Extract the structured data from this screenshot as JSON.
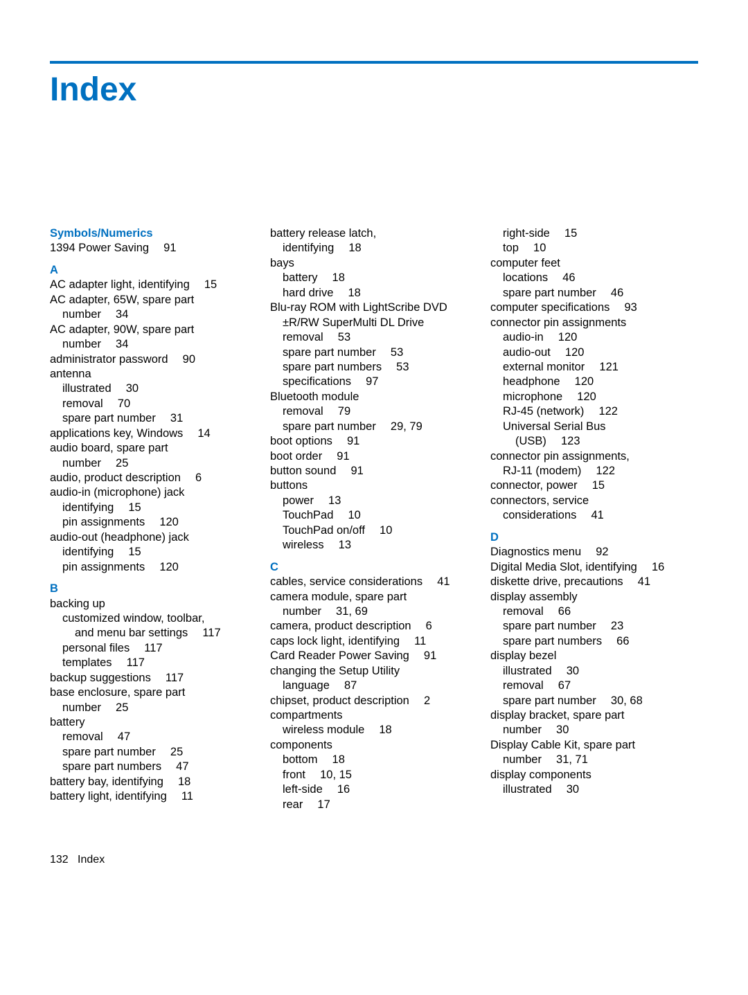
{
  "title": "Index",
  "footer_page": "132",
  "footer_label": "Index",
  "columns": [
    {
      "items": [
        {
          "kind": "head",
          "text": "Symbols/Numerics",
          "first": true
        },
        {
          "kind": "line",
          "indent": 0,
          "text": "1394 Power Saving  91"
        },
        {
          "kind": "head",
          "text": "A"
        },
        {
          "kind": "line",
          "indent": 0,
          "text": "AC adapter light, identifying  15"
        },
        {
          "kind": "line",
          "indent": 0,
          "text": "AC adapter, 65W, spare part"
        },
        {
          "kind": "line",
          "indent": 1,
          "text": "number  34"
        },
        {
          "kind": "line",
          "indent": 0,
          "text": "AC adapter, 90W, spare part"
        },
        {
          "kind": "line",
          "indent": 1,
          "text": "number  34"
        },
        {
          "kind": "line",
          "indent": 0,
          "text": "administrator password  90"
        },
        {
          "kind": "line",
          "indent": 0,
          "text": "antenna"
        },
        {
          "kind": "line",
          "indent": 1,
          "text": "illustrated  30"
        },
        {
          "kind": "line",
          "indent": 1,
          "text": "removal  70"
        },
        {
          "kind": "line",
          "indent": 1,
          "text": "spare part number  31"
        },
        {
          "kind": "line",
          "indent": 0,
          "text": "applications key, Windows  14"
        },
        {
          "kind": "line",
          "indent": 0,
          "text": "audio board, spare part"
        },
        {
          "kind": "line",
          "indent": 1,
          "text": "number  25"
        },
        {
          "kind": "line",
          "indent": 0,
          "text": "audio, product description  6"
        },
        {
          "kind": "line",
          "indent": 0,
          "text": "audio-in (microphone) jack"
        },
        {
          "kind": "line",
          "indent": 1,
          "text": "identifying  15"
        },
        {
          "kind": "line",
          "indent": 1,
          "text": "pin assignments  120"
        },
        {
          "kind": "line",
          "indent": 0,
          "text": "audio-out (headphone) jack"
        },
        {
          "kind": "line",
          "indent": 1,
          "text": "identifying  15"
        },
        {
          "kind": "line",
          "indent": 1,
          "text": "pin assignments  120"
        },
        {
          "kind": "head",
          "text": "B"
        },
        {
          "kind": "line",
          "indent": 0,
          "text": "backing up"
        },
        {
          "kind": "line",
          "indent": 1,
          "text": "customized window, toolbar,"
        },
        {
          "kind": "line",
          "indent": 2,
          "text": "and menu bar settings  117"
        },
        {
          "kind": "line",
          "indent": 1,
          "text": "personal files  117"
        },
        {
          "kind": "line",
          "indent": 1,
          "text": "templates  117"
        },
        {
          "kind": "line",
          "indent": 0,
          "text": "backup suggestions  117"
        },
        {
          "kind": "line",
          "indent": 0,
          "text": "base enclosure, spare part"
        },
        {
          "kind": "line",
          "indent": 1,
          "text": "number  25"
        },
        {
          "kind": "line",
          "indent": 0,
          "text": "battery"
        },
        {
          "kind": "line",
          "indent": 1,
          "text": "removal  47"
        },
        {
          "kind": "line",
          "indent": 1,
          "text": "spare part number  25"
        },
        {
          "kind": "line",
          "indent": 1,
          "text": "spare part numbers  47"
        },
        {
          "kind": "line",
          "indent": 0,
          "text": "battery bay, identifying  18"
        },
        {
          "kind": "line",
          "indent": 0,
          "text": "battery light, identifying  11"
        }
      ]
    },
    {
      "items": [
        {
          "kind": "line",
          "indent": 0,
          "text": "battery release latch,"
        },
        {
          "kind": "line",
          "indent": 1,
          "text": "identifying  18"
        },
        {
          "kind": "line",
          "indent": 0,
          "text": "bays"
        },
        {
          "kind": "line",
          "indent": 1,
          "text": "battery  18"
        },
        {
          "kind": "line",
          "indent": 1,
          "text": "hard drive  18"
        },
        {
          "kind": "line",
          "indent": 0,
          "text": "Blu-ray ROM with LightScribe DVD"
        },
        {
          "kind": "line",
          "indent": 1,
          "text": "±R/RW SuperMulti DL Drive"
        },
        {
          "kind": "line",
          "indent": 1,
          "text": "removal  53"
        },
        {
          "kind": "line",
          "indent": 1,
          "text": "spare part number  53"
        },
        {
          "kind": "line",
          "indent": 1,
          "text": "spare part numbers  53"
        },
        {
          "kind": "line",
          "indent": 1,
          "text": "specifications  97"
        },
        {
          "kind": "line",
          "indent": 0,
          "text": "Bluetooth module"
        },
        {
          "kind": "line",
          "indent": 1,
          "text": "removal  79"
        },
        {
          "kind": "line",
          "indent": 1,
          "text": "spare part number  29,  79"
        },
        {
          "kind": "line",
          "indent": 0,
          "text": "boot options  91"
        },
        {
          "kind": "line",
          "indent": 0,
          "text": "boot order  91"
        },
        {
          "kind": "line",
          "indent": 0,
          "text": "button sound  91"
        },
        {
          "kind": "line",
          "indent": 0,
          "text": "buttons"
        },
        {
          "kind": "line",
          "indent": 1,
          "text": "power  13"
        },
        {
          "kind": "line",
          "indent": 1,
          "text": "TouchPad  10"
        },
        {
          "kind": "line",
          "indent": 1,
          "text": "TouchPad on/off  10"
        },
        {
          "kind": "line",
          "indent": 1,
          "text": "wireless  13"
        },
        {
          "kind": "head",
          "text": "C"
        },
        {
          "kind": "line",
          "indent": 0,
          "text": "cables, service considerations  41"
        },
        {
          "kind": "line",
          "indent": 0,
          "text": "camera module, spare part"
        },
        {
          "kind": "line",
          "indent": 1,
          "text": "number  31,  69"
        },
        {
          "kind": "line",
          "indent": 0,
          "text": "camera, product description  6"
        },
        {
          "kind": "line",
          "indent": 0,
          "text": "caps lock light, identifying  11"
        },
        {
          "kind": "line",
          "indent": 0,
          "text": "Card Reader Power Saving  91"
        },
        {
          "kind": "line",
          "indent": 0,
          "text": "changing the Setup Utility"
        },
        {
          "kind": "line",
          "indent": 1,
          "text": "language  87"
        },
        {
          "kind": "line",
          "indent": 0,
          "text": "chipset, product description  2"
        },
        {
          "kind": "line",
          "indent": 0,
          "text": "compartments"
        },
        {
          "kind": "line",
          "indent": 1,
          "text": "wireless module  18"
        },
        {
          "kind": "line",
          "indent": 0,
          "text": "components"
        },
        {
          "kind": "line",
          "indent": 1,
          "text": "bottom  18"
        },
        {
          "kind": "line",
          "indent": 1,
          "text": "front  10,  15"
        },
        {
          "kind": "line",
          "indent": 1,
          "text": "left-side  16"
        },
        {
          "kind": "line",
          "indent": 1,
          "text": "rear  17"
        }
      ]
    },
    {
      "items": [
        {
          "kind": "line",
          "indent": 1,
          "text": "right-side  15"
        },
        {
          "kind": "line",
          "indent": 1,
          "text": "top  10"
        },
        {
          "kind": "line",
          "indent": 0,
          "text": "computer feet"
        },
        {
          "kind": "line",
          "indent": 1,
          "text": "locations  46"
        },
        {
          "kind": "line",
          "indent": 1,
          "text": "spare part number  46"
        },
        {
          "kind": "line",
          "indent": 0,
          "text": "computer specifications  93"
        },
        {
          "kind": "line",
          "indent": 0,
          "text": "connector pin assignments"
        },
        {
          "kind": "line",
          "indent": 1,
          "text": "audio-in  120"
        },
        {
          "kind": "line",
          "indent": 1,
          "text": "audio-out  120"
        },
        {
          "kind": "line",
          "indent": 1,
          "text": "external monitor  121"
        },
        {
          "kind": "line",
          "indent": 1,
          "text": "headphone  120"
        },
        {
          "kind": "line",
          "indent": 1,
          "text": "microphone  120"
        },
        {
          "kind": "line",
          "indent": 1,
          "text": "RJ-45 (network)  122"
        },
        {
          "kind": "line",
          "indent": 1,
          "text": "Universal Serial Bus"
        },
        {
          "kind": "line",
          "indent": 2,
          "text": "(USB)  123"
        },
        {
          "kind": "line",
          "indent": 0,
          "text": "connector pin assignments,"
        },
        {
          "kind": "line",
          "indent": 1,
          "text": "RJ-11 (modem)  122"
        },
        {
          "kind": "line",
          "indent": 0,
          "text": "connector, power  15"
        },
        {
          "kind": "line",
          "indent": 0,
          "text": "connectors, service"
        },
        {
          "kind": "line",
          "indent": 1,
          "text": "considerations  41"
        },
        {
          "kind": "head",
          "text": "D"
        },
        {
          "kind": "line",
          "indent": 0,
          "text": "Diagnostics menu  92"
        },
        {
          "kind": "line",
          "indent": 0,
          "text": "Digital Media Slot, identifying  16"
        },
        {
          "kind": "line",
          "indent": 0,
          "text": "diskette drive, precautions  41"
        },
        {
          "kind": "line",
          "indent": 0,
          "text": "display assembly"
        },
        {
          "kind": "line",
          "indent": 1,
          "text": "removal  66"
        },
        {
          "kind": "line",
          "indent": 1,
          "text": "spare part number  23"
        },
        {
          "kind": "line",
          "indent": 1,
          "text": "spare part numbers  66"
        },
        {
          "kind": "line",
          "indent": 0,
          "text": "display bezel"
        },
        {
          "kind": "line",
          "indent": 1,
          "text": "illustrated  30"
        },
        {
          "kind": "line",
          "indent": 1,
          "text": "removal  67"
        },
        {
          "kind": "line",
          "indent": 1,
          "text": "spare part number  30,  68"
        },
        {
          "kind": "line",
          "indent": 0,
          "text": "display bracket, spare part"
        },
        {
          "kind": "line",
          "indent": 1,
          "text": "number  30"
        },
        {
          "kind": "line",
          "indent": 0,
          "text": "Display Cable Kit, spare part"
        },
        {
          "kind": "line",
          "indent": 1,
          "text": "number  31,  71"
        },
        {
          "kind": "line",
          "indent": 0,
          "text": "display components"
        },
        {
          "kind": "line",
          "indent": 1,
          "text": "illustrated  30"
        }
      ]
    }
  ]
}
